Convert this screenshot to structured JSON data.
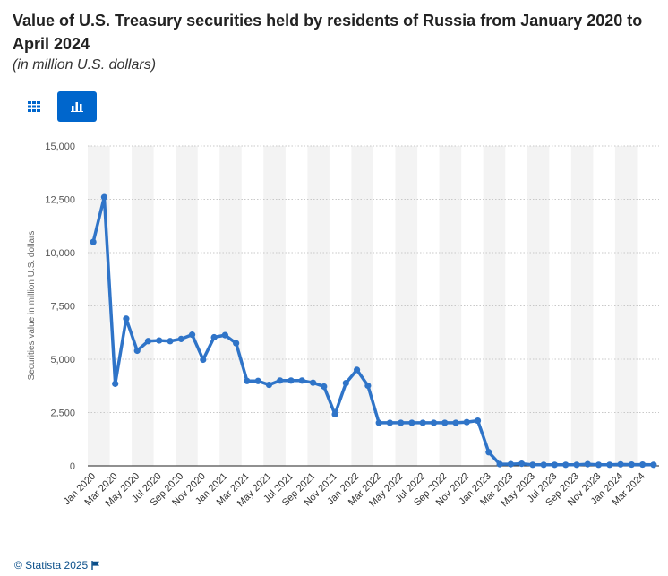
{
  "header": {
    "title": "Value of U.S. Treasury securities held by residents of Russia from January 2020 to April 2024",
    "subtitle": "(in million U.S. dollars)"
  },
  "toolbar": {
    "table_view_icon": "grid-icon",
    "chart_view_icon": "bar-chart-icon"
  },
  "footer": {
    "copyright": "© Statista 2025",
    "flag_icon": "flag-icon"
  },
  "colors": {
    "line": "#2f74c8",
    "accent": "#0066cc",
    "band": "#f3f3f3"
  },
  "chart_data": {
    "type": "line",
    "title": "Value of U.S. Treasury securities held by residents of Russia from January 2020 to April 2024",
    "ylabel": "Securities value in million U.S. dollars",
    "xlabel": "",
    "ylim": [
      0,
      15000
    ],
    "yticks": [
      0,
      2500,
      5000,
      7500,
      10000,
      12500,
      15000
    ],
    "ytick_labels": [
      "0",
      "2,500",
      "5,000",
      "7,500",
      "10,000",
      "12,500",
      "15,000"
    ],
    "grid": true,
    "x": [
      "Jan 2020",
      "Feb 2020",
      "Mar 2020",
      "Apr 2020",
      "May 2020",
      "Jun 2020",
      "Jul 2020",
      "Aug 2020",
      "Sep 2020",
      "Oct 2020",
      "Nov 2020",
      "Dec 2020",
      "Jan 2021",
      "Feb 2021",
      "Mar 2021",
      "Apr 2021",
      "May 2021",
      "Jun 2021",
      "Jul 2021",
      "Aug 2021",
      "Sep 2021",
      "Oct 2021",
      "Nov 2021",
      "Dec 2021",
      "Jan 2022",
      "Feb 2022",
      "Mar 2022",
      "Apr 2022",
      "May 2022",
      "Jun 2022",
      "Jul 2022",
      "Aug 2022",
      "Sep 2022",
      "Oct 2022",
      "Nov 2022",
      "Dec 2022",
      "Jan 2023",
      "Feb 2023",
      "Mar 2023",
      "Apr 2023",
      "May 2023",
      "Jun 2023",
      "Jul 2023",
      "Aug 2023",
      "Sep 2023",
      "Oct 2023",
      "Nov 2023",
      "Dec 2023",
      "Jan 2024",
      "Feb 2024",
      "Mar 2024",
      "Apr 2024"
    ],
    "xtick_labels": [
      "Jan 2020",
      "Mar 2020",
      "May 2020",
      "Jul 2020",
      "Sep 2020",
      "Nov 2020",
      "Jan 2021",
      "Mar 2021",
      "May 2021",
      "Jul 2021",
      "Sep 2021",
      "Nov 2021",
      "Jan 2022",
      "Mar 2022",
      "May 2022",
      "Jul 2022",
      "Sep 2022",
      "Nov 2022",
      "Jan 2023",
      "Mar 2023",
      "May 2023",
      "Jul 2023",
      "Sep 2023",
      "Nov 2023",
      "Jan 2024",
      "Mar 2024"
    ],
    "series": [
      {
        "name": "Securities value",
        "values": [
          10500,
          12600,
          3850,
          6900,
          5400,
          5850,
          5880,
          5850,
          5950,
          6150,
          4980,
          6030,
          6130,
          5750,
          3980,
          3980,
          3800,
          4000,
          4000,
          4000,
          3900,
          3720,
          2420,
          3880,
          4500,
          3760,
          2020,
          2020,
          2020,
          2020,
          2020,
          2020,
          2020,
          2020,
          2050,
          2120,
          640,
          80,
          80,
          100,
          50,
          50,
          50,
          50,
          50,
          80,
          50,
          50,
          70,
          60,
          60,
          50
        ]
      }
    ]
  }
}
